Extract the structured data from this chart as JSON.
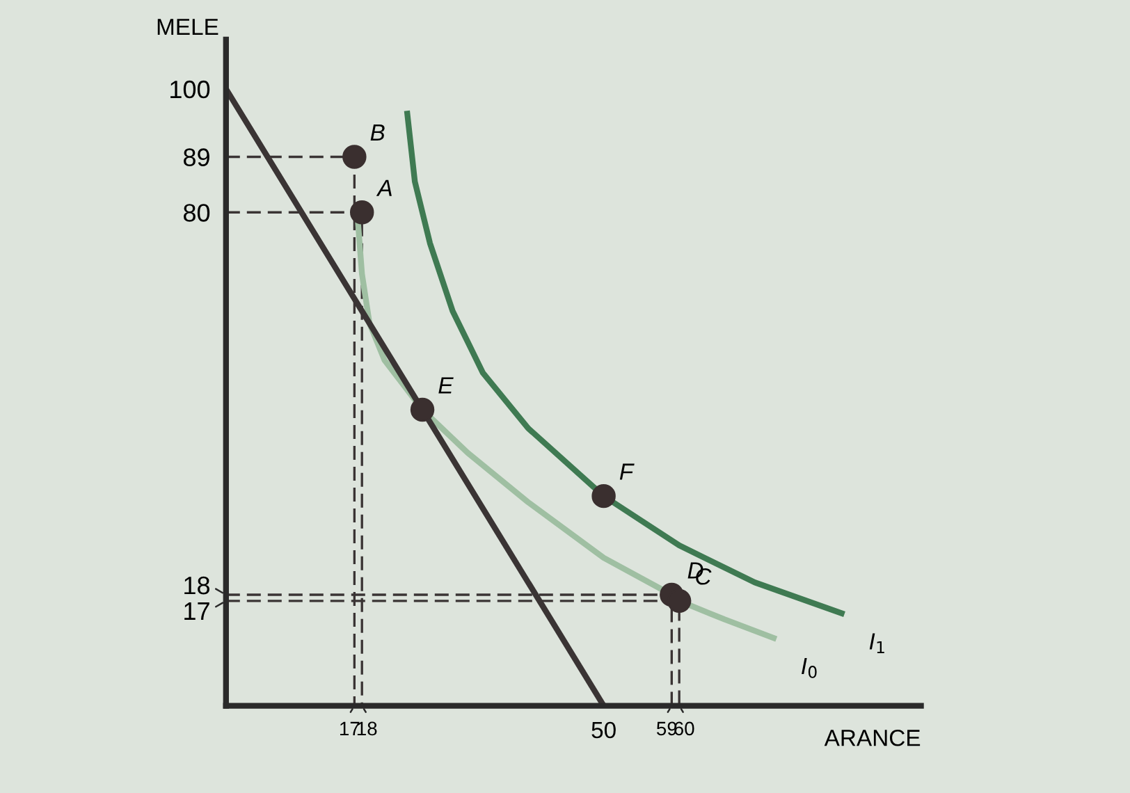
{
  "chart_data": {
    "type": "line",
    "xlabel": "ARANCE",
    "ylabel": "MELE",
    "xlim": [
      0,
      92
    ],
    "ylim": [
      0,
      108
    ],
    "xticks": [
      17,
      18,
      50,
      59,
      60
    ],
    "yticks": [
      17,
      18,
      80,
      89,
      100
    ],
    "grid": false,
    "legend": false,
    "series": [
      {
        "color": "#3a3434",
        "line_style": "dashed",
        "x": [
          0,
          17,
          17
        ],
        "values": [
          89,
          89,
          0
        ]
      },
      {
        "color": "#3a3434",
        "line_style": "dashed",
        "x": [
          0,
          18,
          18
        ],
        "values": [
          80,
          80,
          0
        ]
      },
      {
        "color": "#3a3434",
        "line_style": "dashed",
        "x": [
          0,
          59,
          59
        ],
        "values": [
          18,
          18,
          0
        ]
      },
      {
        "color": "#3a3434",
        "line_style": "dashed",
        "x": [
          0,
          60,
          60
        ],
        "values": [
          17,
          17,
          0
        ]
      },
      {
        "name": "I$_{0}$",
        "color": "#9fbfa2",
        "line_style": "solid",
        "x": [
          17.5,
          18,
          19,
          21,
          26,
          32,
          40,
          50,
          59,
          60,
          66,
          72.5
        ],
        "values": [
          78,
          70,
          62,
          56,
          48,
          41,
          33,
          24,
          18,
          17,
          14,
          11
        ]
      },
      {
        "name": "I$_{1}$",
        "color": "#3f7a52",
        "line_style": "solid",
        "x": [
          24,
          25,
          27,
          30,
          34,
          40,
          50,
          60,
          70,
          81.5
        ],
        "values": [
          96,
          85,
          75,
          64,
          54,
          45,
          34,
          26,
          20,
          15
        ]
      },
      {
        "color": "#3a3434",
        "line_style": "solid",
        "x": [
          0,
          50
        ],
        "values": [
          100,
          0
        ]
      },
      {
        "type": "scatter",
        "color": "#3a2f2f",
        "marker": "circle",
        "x": [
          17,
          18,
          26,
          50,
          59,
          60
        ],
        "values": [
          89,
          80,
          48,
          34,
          18,
          17
        ]
      }
    ],
    "annotations": [
      {
        "text": "B",
        "x": 17,
        "y": 89
      },
      {
        "text": "A",
        "x": 18,
        "y": 80
      },
      {
        "text": "E",
        "x": 26,
        "y": 48
      },
      {
        "text": "F",
        "x": 50,
        "y": 34
      },
      {
        "text": "D",
        "x": 59,
        "y": 18
      },
      {
        "text": "C",
        "x": 60,
        "y": 17
      }
    ]
  }
}
